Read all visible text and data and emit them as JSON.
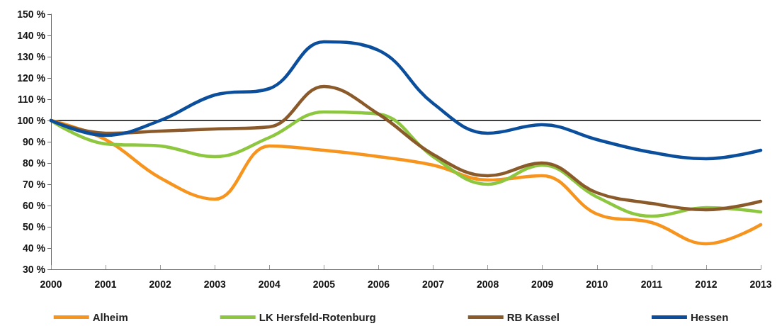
{
  "chart_data": {
    "type": "line",
    "categories": [
      "2000",
      "2001",
      "2002",
      "2003",
      "2004",
      "2005",
      "2006",
      "2007",
      "2008",
      "2009",
      "2010",
      "2011",
      "2012",
      "2013"
    ],
    "series": [
      {
        "name": "Alheim",
        "color": "#f7941d",
        "values": [
          100,
          91,
          73,
          63,
          88,
          86,
          83,
          79,
          72,
          74,
          56,
          52,
          42,
          51
        ]
      },
      {
        "name": "LK Hersfeld-Rotenburg",
        "color": "#8dc63f",
        "values": [
          100,
          89,
          88,
          83,
          92,
          104,
          103,
          83,
          70,
          79,
          64,
          55,
          59,
          57
        ]
      },
      {
        "name": "RB Kassel",
        "color": "#8b5a2b",
        "values": [
          100,
          94,
          95,
          96,
          97,
          116,
          103,
          84,
          74,
          80,
          66,
          61,
          58,
          62
        ]
      },
      {
        "name": "Hessen",
        "color": "#0b4f9c",
        "values": [
          100,
          93,
          100,
          112,
          115,
          137,
          133,
          108,
          94,
          98,
          91,
          85,
          82,
          86
        ]
      }
    ],
    "ylim": [
      30,
      150
    ],
    "yticks": [
      {
        "value": 30,
        "label": "30 %"
      },
      {
        "value": 40,
        "label": "40 %"
      },
      {
        "value": 50,
        "label": "50 %"
      },
      {
        "value": 60,
        "label": "60 %"
      },
      {
        "value": 70,
        "label": "70 %"
      },
      {
        "value": 80,
        "label": "80 %"
      },
      {
        "value": 90,
        "label": "90 %"
      },
      {
        "value": 100,
        "label": "100 %"
      },
      {
        "value": 110,
        "label": "110 %"
      },
      {
        "value": 120,
        "label": "120 %"
      },
      {
        "value": 130,
        "label": "130 %"
      },
      {
        "value": 140,
        "label": "140 %"
      },
      {
        "value": 150,
        "label": "150 %"
      }
    ],
    "ref_lines": [
      {
        "axis": "y",
        "value": 100,
        "color": "#000000",
        "line_style": "solid"
      }
    ],
    "grid": false,
    "legend": "bottom",
    "marker": "none",
    "line_style": "solid"
  }
}
